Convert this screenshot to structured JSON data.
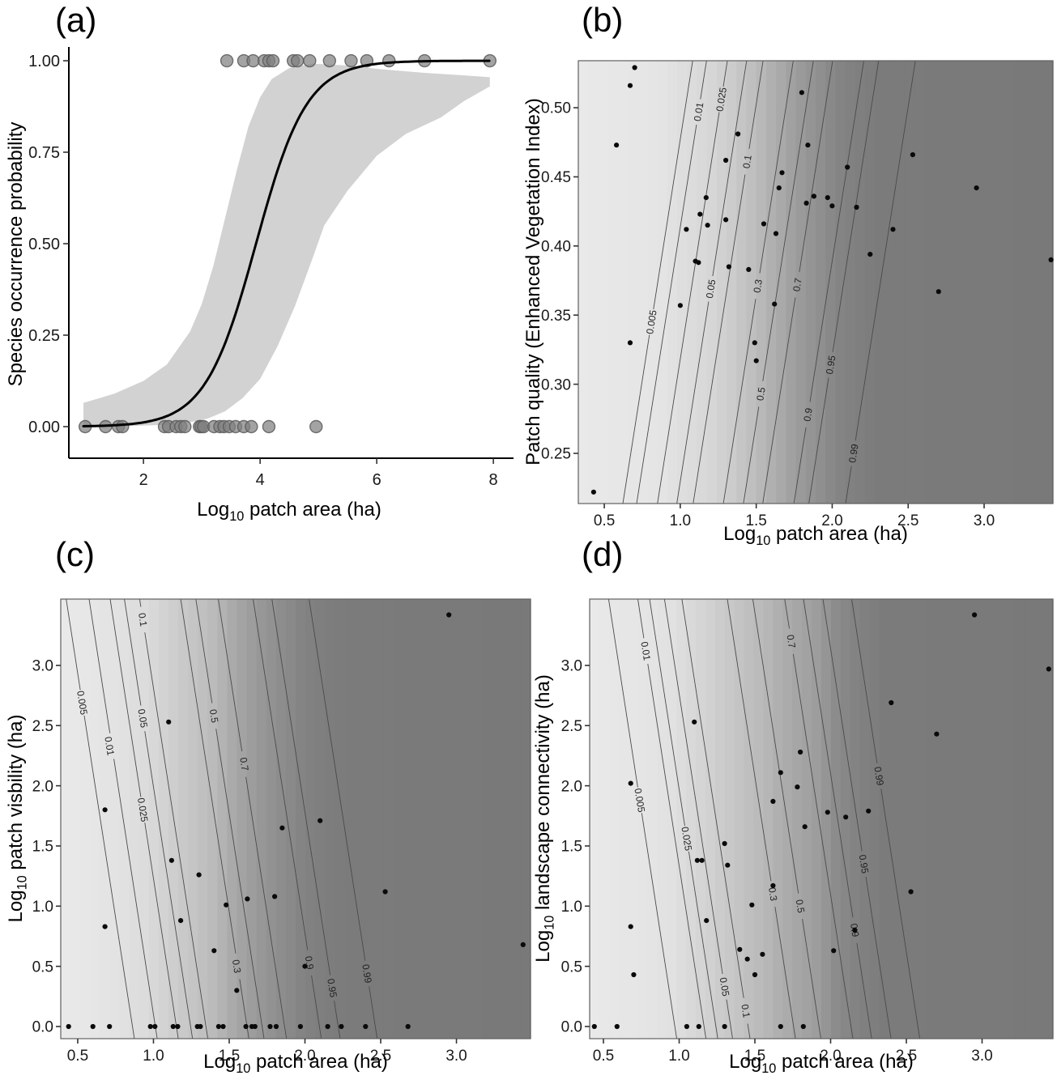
{
  "colors": {
    "background": "#ffffff",
    "ci_band": "#d2d2d2",
    "curve": "#000000",
    "occurrence_point_fill": "#808080",
    "occurrence_point_stroke": "#5a5a5a",
    "contour_line": "#4a4a4a",
    "scatter_dot": "#0a0a0a",
    "axis_line": "#000000",
    "tick": "#333333",
    "tick_text": "#1a1a1a",
    "contour_label_text": "#222222",
    "shade_light_gray": 233,
    "shade_dark_gray": 121,
    "panel_border": "#606060"
  },
  "chart_data": [
    {
      "type": "line",
      "panel_label": "(a)",
      "title": "",
      "xlabel": {
        "pre": "Log",
        "sub": "10",
        "post": " patch area (ha)"
      },
      "ylabel": {
        "pre": "Species occurrence probability",
        "sub": "",
        "post": ""
      },
      "geom": {
        "l": 85,
        "t": 62,
        "r": 630,
        "b": 566
      },
      "xlim": [
        0.72,
        8.29
      ],
      "ylim": [
        -0.0863,
        1.0288
      ],
      "xticks": [
        2,
        4,
        6,
        8
      ],
      "xtick_labels": [
        "2",
        "4",
        "6",
        "8"
      ],
      "yticks": [
        0,
        0.25,
        0.5,
        0.75,
        1
      ],
      "ytick_labels": [
        "0.00",
        "0.25",
        "0.50",
        "0.75",
        "1.00"
      ],
      "curve": {
        "kind": "logistic",
        "x0": 3.93,
        "k": 2.3,
        "x_start": 0.97,
        "x_end": 7.94
      },
      "ci_upper": [
        [
          0.97,
          0.065
        ],
        [
          1.5,
          0.09
        ],
        [
          2.0,
          0.125
        ],
        [
          2.4,
          0.17
        ],
        [
          2.8,
          0.26
        ],
        [
          3.0,
          0.335
        ],
        [
          3.2,
          0.44
        ],
        [
          3.4,
          0.57
        ],
        [
          3.6,
          0.7
        ],
        [
          3.8,
          0.82
        ],
        [
          4.0,
          0.9
        ],
        [
          4.2,
          0.95
        ],
        [
          4.5,
          0.98
        ],
        [
          4.9,
          0.992
        ],
        [
          5.5,
          0.987
        ],
        [
          6.0,
          0.978
        ],
        [
          6.8,
          0.967
        ],
        [
          7.5,
          0.96
        ],
        [
          7.94,
          0.955
        ]
      ],
      "ci_lower": [
        [
          0.97,
          0.0
        ],
        [
          1.8,
          0.002
        ],
        [
          2.4,
          0.005
        ],
        [
          2.8,
          0.012
        ],
        [
          3.1,
          0.022
        ],
        [
          3.4,
          0.042
        ],
        [
          3.7,
          0.078
        ],
        [
          4.0,
          0.13
        ],
        [
          4.3,
          0.22
        ],
        [
          4.6,
          0.33
        ],
        [
          4.9,
          0.46
        ],
        [
          5.1,
          0.55
        ],
        [
          5.5,
          0.645
        ],
        [
          6.0,
          0.74
        ],
        [
          6.5,
          0.8
        ],
        [
          7.1,
          0.845
        ],
        [
          7.5,
          0.89
        ],
        [
          7.94,
          0.93
        ]
      ],
      "presence_y": 1,
      "absence_y": 0,
      "points_presence_x": [
        3.43,
        3.72,
        3.88,
        4.07,
        4.15,
        4.22,
        4.57,
        4.64,
        4.85,
        5.19,
        5.56,
        5.83,
        6.21,
        6.82,
        7.94
      ],
      "points_absence_x": [
        1.0,
        1.35,
        1.57,
        1.64,
        2.36,
        2.43,
        2.56,
        2.64,
        2.71,
        2.96,
        2.99,
        3.03,
        3.21,
        3.31,
        3.38,
        3.47,
        3.58,
        3.72,
        3.85,
        4.15,
        4.96
      ]
    },
    {
      "type": "contour",
      "panel_label": "(b)",
      "title": "",
      "xlabel": {
        "pre": "Log",
        "sub": "10",
        "post": " patch area (ha)"
      },
      "ylabel": {
        "pre": "Patch quality (Enhanced Vegetation Index)",
        "sub": "",
        "post": ""
      },
      "geom": {
        "l": 714,
        "t": 75,
        "r": 1300,
        "b": 622
      },
      "xlim": [
        0.329,
        3.453
      ],
      "ylim": [
        0.2137,
        0.534
      ],
      "xticks": [
        0.5,
        1.0,
        1.5,
        2.0,
        2.5,
        3.0
      ],
      "xtick_labels": [
        "0.5",
        "1.0",
        "1.5",
        "2.0",
        "2.5",
        "3.0"
      ],
      "yticks": [
        0.25,
        0.3,
        0.35,
        0.4,
        0.45,
        0.5
      ],
      "ytick_labels": [
        "0.25",
        "0.30",
        "0.35",
        "0.40",
        "0.45",
        "0.50"
      ],
      "lean": 0.46,
      "label_rotation": -81,
      "contours": [
        {
          "v": "0.005",
          "g": 229,
          "xm": 0.852,
          "lx": 0.81,
          "ly": 0.345
        },
        {
          "v": "0.01",
          "g": 225,
          "xm": 0.943,
          "lx": 1.12,
          "ly": 0.497
        },
        {
          "v": "0.025",
          "g": 220,
          "xm": 1.08,
          "lx": 1.27,
          "ly": 0.506
        },
        {
          "v": "0.05",
          "g": 214,
          "xm": 1.207,
          "lx": 1.2,
          "ly": 0.369
        },
        {
          "v": "0.1",
          "g": 206,
          "xm": 1.315,
          "lx": 1.44,
          "ly": 0.461
        },
        {
          "v": "0.3",
          "g": 186,
          "xm": 1.514,
          "lx": 1.51,
          "ly": 0.371
        },
        {
          "v": "0.5",
          "g": 171,
          "xm": 1.646,
          "lx": 1.53,
          "ly": 0.293
        },
        {
          "v": "0.7",
          "g": 156,
          "xm": 1.773,
          "lx": 1.77,
          "ly": 0.372
        },
        {
          "v": "0.9",
          "g": 138,
          "xm": 1.978,
          "lx": 1.84,
          "ly": 0.278
        },
        {
          "v": "0.95",
          "g": 130,
          "xm": 2.076,
          "lx": 1.99,
          "ly": 0.314
        },
        {
          "v": "0.99",
          "g": 123,
          "xm": 2.318,
          "lx": 2.14,
          "ly": 0.25
        }
      ],
      "points": [
        [
          0.43,
          0.222
        ],
        [
          0.58,
          0.473
        ],
        [
          0.67,
          0.516
        ],
        [
          0.7,
          0.529
        ],
        [
          0.67,
          0.33
        ],
        [
          1.0,
          0.357
        ],
        [
          1.04,
          0.412
        ],
        [
          1.1,
          0.389
        ],
        [
          1.12,
          0.388
        ],
        [
          1.13,
          0.423
        ],
        [
          1.17,
          0.435
        ],
        [
          1.18,
          0.415
        ],
        [
          1.3,
          0.462
        ],
        [
          1.3,
          0.419
        ],
        [
          1.32,
          0.385
        ],
        [
          1.38,
          0.481
        ],
        [
          1.45,
          0.383
        ],
        [
          1.49,
          0.33
        ],
        [
          1.5,
          0.317
        ],
        [
          1.55,
          0.416
        ],
        [
          1.62,
          0.358
        ],
        [
          1.63,
          0.409
        ],
        [
          1.65,
          0.442
        ],
        [
          1.67,
          0.453
        ],
        [
          1.8,
          0.511
        ],
        [
          1.83,
          0.431
        ],
        [
          1.84,
          0.473
        ],
        [
          1.88,
          0.436
        ],
        [
          1.97,
          0.435
        ],
        [
          2.0,
          0.429
        ],
        [
          2.1,
          0.457
        ],
        [
          2.16,
          0.428
        ],
        [
          2.25,
          0.394
        ],
        [
          2.4,
          0.412
        ],
        [
          2.53,
          0.466
        ],
        [
          2.7,
          0.367
        ],
        [
          2.95,
          0.442
        ],
        [
          3.44,
          0.39
        ]
      ]
    },
    {
      "type": "contour",
      "panel_label": "(c)",
      "title": "",
      "xlabel": {
        "pre": "Log",
        "sub": "10",
        "post": " patch area (ha)"
      },
      "ylabel": {
        "pre": "Log",
        "sub": "10",
        "post": " patch visbility (ha)"
      },
      "geom": {
        "l": 75,
        "t": 740,
        "r": 655,
        "b": 1283
      },
      "xlim": [
        0.388,
        3.489
      ],
      "ylim": [
        -0.101,
        3.551
      ],
      "xticks": [
        0.5,
        1.0,
        1.5,
        2.0,
        2.5,
        3.0
      ],
      "xtick_labels": [
        "0.5",
        "1.0",
        "1.5",
        "2.0",
        "2.5",
        "3.0"
      ],
      "yticks": [
        0.0,
        0.5,
        1.0,
        1.5,
        2.0,
        2.5,
        3.0
      ],
      "ytick_labels": [
        "0.0",
        "0.5",
        "1.0",
        "1.5",
        "2.0",
        "2.5",
        "3.0"
      ],
      "lean": -0.45,
      "label_rotation": 81,
      "contours": [
        {
          "v": "0.005",
          "g": 229,
          "xm": 0.649,
          "lx": 0.53,
          "ly": 2.69
        },
        {
          "v": "0.01",
          "g": 225,
          "xm": 0.8,
          "lx": 0.71,
          "ly": 2.33
        },
        {
          "v": "0.025",
          "g": 220,
          "xm": 0.939,
          "lx": 0.93,
          "ly": 1.8
        },
        {
          "v": "0.05",
          "g": 214,
          "xm": 1.033,
          "lx": 0.93,
          "ly": 2.56
        },
        {
          "v": "0.1",
          "g": 206,
          "xm": 1.134,
          "lx": 0.93,
          "ly": 3.38
        },
        {
          "v": "0.3",
          "g": 186,
          "xm": 1.405,
          "lx": 1.55,
          "ly": 0.5
        },
        {
          "v": "0.5",
          "g": 171,
          "xm": 1.505,
          "lx": 1.4,
          "ly": 2.58
        },
        {
          "v": "0.7",
          "g": 156,
          "xm": 1.653,
          "lx": 1.6,
          "ly": 2.18
        },
        {
          "v": "0.9",
          "g": 138,
          "xm": 1.883,
          "lx": 2.03,
          "ly": 0.53
        },
        {
          "v": "0.95",
          "g": 130,
          "xm": 2.007,
          "lx": 2.18,
          "ly": 0.32
        },
        {
          "v": "0.99",
          "g": 123,
          "xm": 2.252,
          "lx": 2.41,
          "ly": 0.44
        }
      ],
      "points": [
        [
          0.44,
          0
        ],
        [
          0.6,
          0
        ],
        [
          0.71,
          0
        ],
        [
          0.98,
          0
        ],
        [
          1.01,
          0
        ],
        [
          1.13,
          0
        ],
        [
          1.16,
          0
        ],
        [
          1.29,
          0
        ],
        [
          1.31,
          0
        ],
        [
          1.43,
          0
        ],
        [
          1.46,
          0
        ],
        [
          1.61,
          0
        ],
        [
          1.65,
          0
        ],
        [
          1.67,
          0
        ],
        [
          1.77,
          0
        ],
        [
          1.81,
          0
        ],
        [
          1.97,
          0
        ],
        [
          2.15,
          0
        ],
        [
          2.24,
          0
        ],
        [
          2.4,
          0
        ],
        [
          2.68,
          0
        ],
        [
          0.68,
          1.8
        ],
        [
          0.68,
          0.83
        ],
        [
          1.1,
          2.53
        ],
        [
          1.12,
          1.38
        ],
        [
          1.18,
          0.88
        ],
        [
          1.3,
          1.26
        ],
        [
          1.4,
          0.63
        ],
        [
          1.48,
          1.01
        ],
        [
          1.55,
          0.3
        ],
        [
          1.62,
          1.06
        ],
        [
          1.8,
          1.08
        ],
        [
          1.85,
          1.65
        ],
        [
          2.0,
          0.5
        ],
        [
          2.1,
          1.71
        ],
        [
          2.53,
          1.12
        ],
        [
          2.95,
          3.42
        ],
        [
          3.44,
          0.68
        ]
      ]
    },
    {
      "type": "contour",
      "panel_label": "(d)",
      "title": "",
      "xlabel": {
        "pre": "Log",
        "sub": "10",
        "post": " patch area (ha)"
      },
      "ylabel": {
        "pre": "Log",
        "sub": "10",
        "post": " landscape connectivity (ha)"
      },
      "geom": {
        "l": 728,
        "t": 740,
        "r": 1300,
        "b": 1283
      },
      "xlim": [
        0.409,
        3.468
      ],
      "ylim": [
        -0.101,
        3.551
      ],
      "xticks": [
        0.5,
        1.0,
        1.5,
        2.0,
        2.5,
        3.0
      ],
      "xtick_labels": [
        "0.5",
        "1.0",
        "1.5",
        "2.0",
        "2.5",
        "3.0"
      ],
      "yticks": [
        0.0,
        0.5,
        1.0,
        1.5,
        2.0,
        2.5,
        3.0
      ],
      "ytick_labels": [
        "0.0",
        "0.5",
        "1.0",
        "1.5",
        "2.0",
        "2.5",
        "3.0"
      ],
      "lean": -0.45,
      "label_rotation": 81,
      "contours": [
        {
          "v": "0.005",
          "g": 229,
          "xm": 0.759,
          "lx": 0.74,
          "ly": 1.88
        },
        {
          "v": "0.01",
          "g": 225,
          "xm": 0.952,
          "lx": 0.78,
          "ly": 3.12
        },
        {
          "v": "0.025",
          "g": 220,
          "xm": 1.03,
          "lx": 1.05,
          "ly": 1.56
        },
        {
          "v": "0.05",
          "g": 214,
          "xm": 1.128,
          "lx": 1.3,
          "ly": 0.33
        },
        {
          "v": "0.1",
          "g": 206,
          "xm": 1.243,
          "lx": 1.44,
          "ly": 0.13
        },
        {
          "v": "0.3",
          "g": 186,
          "xm": 1.543,
          "lx": 1.62,
          "ly": 1.1
        },
        {
          "v": "0.5",
          "g": 171,
          "xm": 1.711,
          "lx": 1.8,
          "ly": 1.0
        },
        {
          "v": "0.7",
          "g": 156,
          "xm": 1.922,
          "lx": 1.74,
          "ly": 3.2
        },
        {
          "v": "0.9",
          "g": 138,
          "xm": 2.046,
          "lx": 2.16,
          "ly": 0.8
        },
        {
          "v": "0.95",
          "g": 130,
          "xm": 2.174,
          "lx": 2.22,
          "ly": 1.35
        },
        {
          "v": "0.99",
          "g": 123,
          "xm": 2.364,
          "lx": 2.32,
          "ly": 2.08
        }
      ],
      "points": [
        [
          0.44,
          0
        ],
        [
          0.59,
          0
        ],
        [
          1.05,
          0
        ],
        [
          1.13,
          0
        ],
        [
          1.3,
          0
        ],
        [
          1.67,
          0
        ],
        [
          1.82,
          0
        ],
        [
          0.68,
          2.02
        ],
        [
          0.68,
          0.83
        ],
        [
          0.7,
          0.43
        ],
        [
          1.1,
          2.53
        ],
        [
          1.12,
          1.38
        ],
        [
          1.15,
          1.38
        ],
        [
          1.18,
          0.88
        ],
        [
          1.3,
          1.52
        ],
        [
          1.32,
          1.34
        ],
        [
          1.4,
          0.64
        ],
        [
          1.45,
          0.56
        ],
        [
          1.48,
          1.01
        ],
        [
          1.5,
          0.43
        ],
        [
          1.55,
          0.6
        ],
        [
          1.62,
          1.17
        ],
        [
          1.62,
          1.87
        ],
        [
          1.67,
          2.11
        ],
        [
          1.78,
          1.99
        ],
        [
          1.8,
          2.28
        ],
        [
          1.83,
          1.66
        ],
        [
          1.98,
          1.78
        ],
        [
          2.02,
          0.63
        ],
        [
          2.1,
          1.74
        ],
        [
          2.16,
          0.8
        ],
        [
          2.25,
          1.79
        ],
        [
          2.4,
          2.69
        ],
        [
          2.53,
          1.12
        ],
        [
          2.7,
          2.43
        ],
        [
          2.95,
          3.42
        ],
        [
          3.44,
          2.97
        ]
      ]
    }
  ]
}
